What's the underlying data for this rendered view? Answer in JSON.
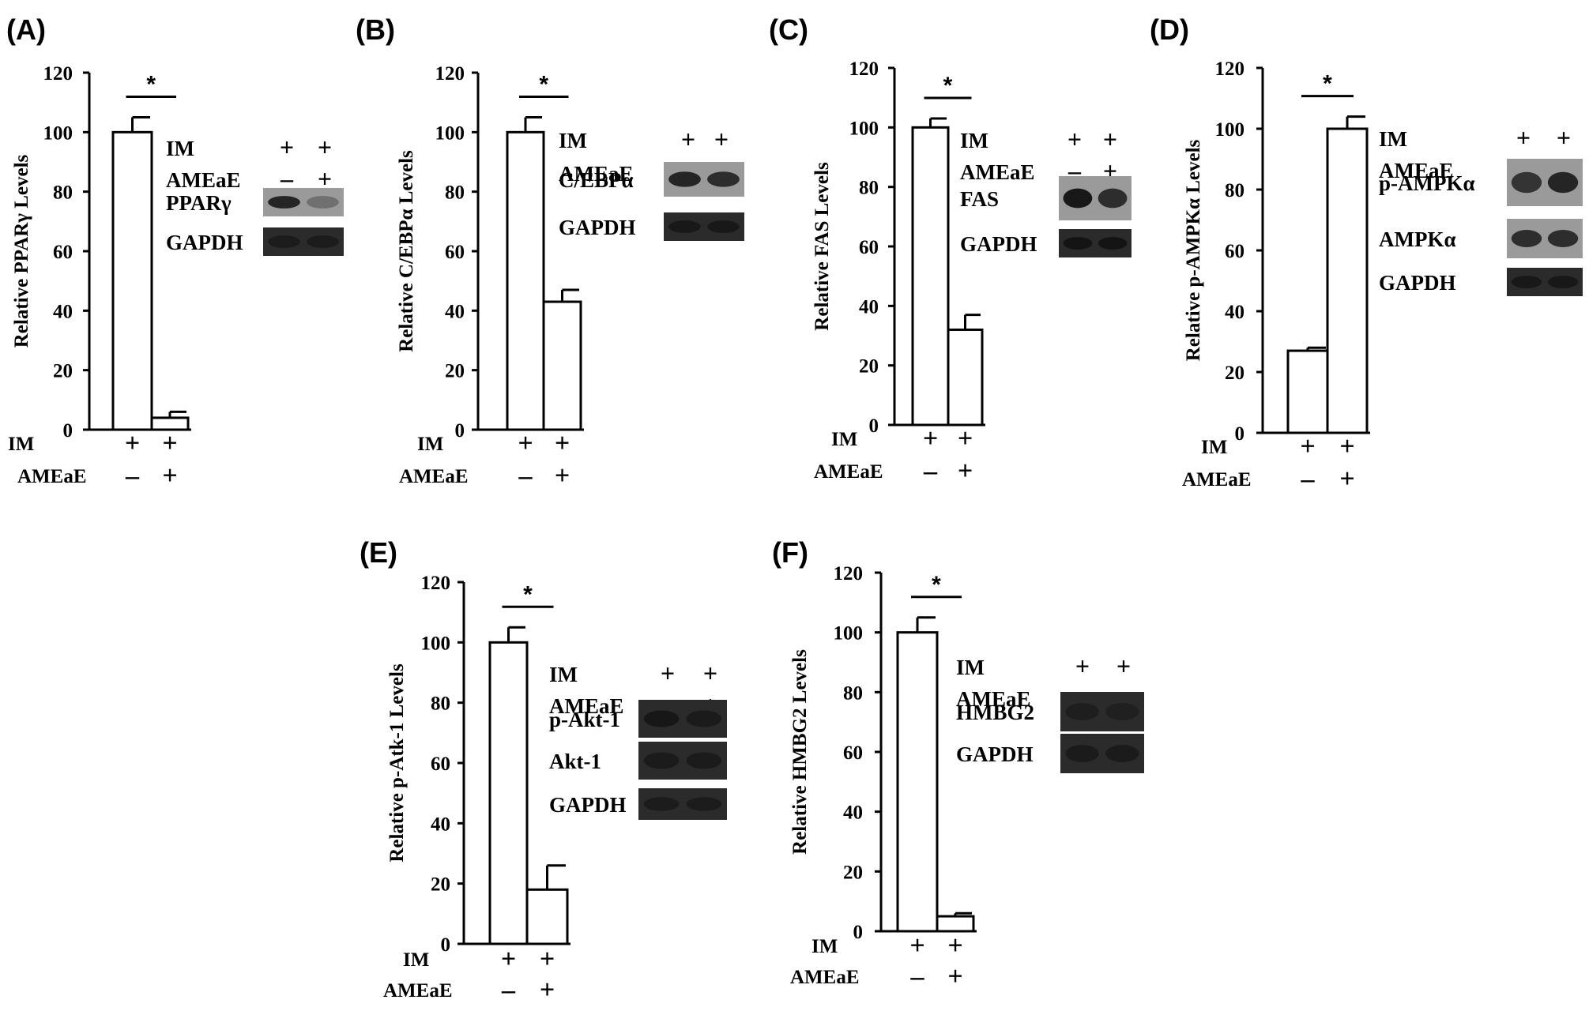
{
  "condition_labels": {
    "im": "IM",
    "ameae": "AMEaE",
    "plus": "+",
    "minus": "–"
  },
  "significance_marker": "*",
  "colors": {
    "bar_fill": "#ffffff",
    "stroke": "#000000",
    "blot_bg": "#9a9a9a",
    "blot_bg_dark": "#2b2b2b",
    "band": "#111111"
  },
  "chart_data": [
    {
      "panel": "(A)",
      "type": "bar",
      "ylabel": "Relative PPARγ Levels",
      "ylim": [
        0,
        120
      ],
      "yticks": [
        0,
        20,
        40,
        60,
        80,
        100,
        120
      ],
      "groups": [
        {
          "IM": "+",
          "AMEaE": "–",
          "value": 100,
          "error": 5
        },
        {
          "IM": "+",
          "AMEaE": "+",
          "value": 4,
          "error": 2
        }
      ],
      "significance": "*",
      "blot": {
        "lanes": {
          "IM": [
            "+",
            "+"
          ],
          "AMEaE": [
            "–",
            "+"
          ]
        },
        "rows": [
          {
            "label": "PPARγ",
            "bands": [
              0.85,
              0.3
            ]
          },
          {
            "label": "GAPDH",
            "bands": [
              0.55,
              0.55
            ]
          }
        ]
      }
    },
    {
      "panel": "(B)",
      "type": "bar",
      "ylabel": "Relative C/EBPα Levels",
      "ylim": [
        0,
        120
      ],
      "yticks": [
        0,
        20,
        40,
        60,
        80,
        100,
        120
      ],
      "groups": [
        {
          "IM": "+",
          "AMEaE": "–",
          "value": 100,
          "error": 5
        },
        {
          "IM": "+",
          "AMEaE": "+",
          "value": 43,
          "error": 4
        }
      ],
      "significance": "*",
      "blot": {
        "lanes": {
          "IM": [
            "+",
            "+"
          ],
          "AMEaE": [
            "–",
            "+"
          ]
        },
        "rows": [
          {
            "label": "C/EBPα",
            "bands": [
              0.85,
              0.8
            ]
          },
          {
            "label": "GAPDH",
            "bands": [
              0.7,
              0.7
            ]
          }
        ]
      }
    },
    {
      "panel": "(C)",
      "type": "bar",
      "ylabel": "Relative FAS Levels",
      "ylim": [
        0,
        120
      ],
      "yticks": [
        0,
        20,
        40,
        60,
        80,
        100,
        120
      ],
      "groups": [
        {
          "IM": "+",
          "AMEaE": "–",
          "value": 100,
          "error": 3
        },
        {
          "IM": "+",
          "AMEaE": "+",
          "value": 32,
          "error": 5
        }
      ],
      "significance": "*",
      "blot": {
        "lanes": {
          "IM": [
            "+",
            "+"
          ],
          "AMEaE": [
            "–",
            "+"
          ]
        },
        "rows": [
          {
            "label": "FAS",
            "bands": [
              0.95,
              0.8
            ]
          },
          {
            "label": "GAPDH",
            "bands": [
              0.85,
              0.85
            ]
          }
        ]
      }
    },
    {
      "panel": "(D)",
      "type": "bar",
      "ylabel": "Relative p-AMPKα Levels",
      "ylim": [
        0,
        120
      ],
      "yticks": [
        0,
        20,
        40,
        60,
        80,
        100,
        120
      ],
      "groups": [
        {
          "IM": "+",
          "AMEaE": "–",
          "value": 27,
          "error": 1
        },
        {
          "IM": "+",
          "AMEaE": "+",
          "value": 100,
          "error": 4
        }
      ],
      "significance": "*",
      "blot": {
        "lanes": {
          "IM": [
            "+",
            "+"
          ],
          "AMEaE": [
            "–",
            "+"
          ]
        },
        "rows": [
          {
            "label": "p-AMPKα",
            "bands": [
              0.75,
              0.85
            ]
          },
          {
            "label": "AMPKα",
            "bands": [
              0.8,
              0.8
            ]
          },
          {
            "label": "GAPDH",
            "bands": [
              0.7,
              0.7
            ]
          }
        ]
      }
    },
    {
      "panel": "(E)",
      "type": "bar",
      "ylabel": "Relative p-Atk-1 Levels",
      "ylim": [
        0,
        120
      ],
      "yticks": [
        0,
        20,
        40,
        60,
        80,
        100,
        120
      ],
      "groups": [
        {
          "IM": "+",
          "AMEaE": "–",
          "value": 100,
          "error": 5
        },
        {
          "IM": "+",
          "AMEaE": "+",
          "value": 18,
          "error": 8
        }
      ],
      "significance": "*",
      "blot": {
        "lanes": {
          "IM": [
            "+",
            "+"
          ],
          "AMEaE": [
            "–",
            "+"
          ]
        },
        "rows": [
          {
            "label": "p-Akt-1",
            "bands": [
              0.75,
              0.6
            ]
          },
          {
            "label": "Akt-1",
            "bands": [
              0.6,
              0.6
            ]
          },
          {
            "label": "GAPDH",
            "bands": [
              0.55,
              0.55
            ]
          }
        ]
      }
    },
    {
      "panel": "(F)",
      "type": "bar",
      "ylabel": "Relative HMBG2 Levels",
      "ylim": [
        0,
        120
      ],
      "yticks": [
        0,
        20,
        40,
        60,
        80,
        100,
        120
      ],
      "groups": [
        {
          "IM": "+",
          "AMEaE": "–",
          "value": 100,
          "error": 5
        },
        {
          "IM": "+",
          "AMEaE": "+",
          "value": 5,
          "error": 1
        }
      ],
      "significance": "*",
      "blot": {
        "lanes": {
          "IM": [
            "+",
            "+"
          ],
          "AMEaE": [
            "–",
            "+"
          ]
        },
        "rows": [
          {
            "label": "HMBG2",
            "bands": [
              0.5,
              0.4
            ]
          },
          {
            "label": "GAPDH",
            "bands": [
              0.6,
              0.6
            ]
          }
        ]
      }
    }
  ]
}
